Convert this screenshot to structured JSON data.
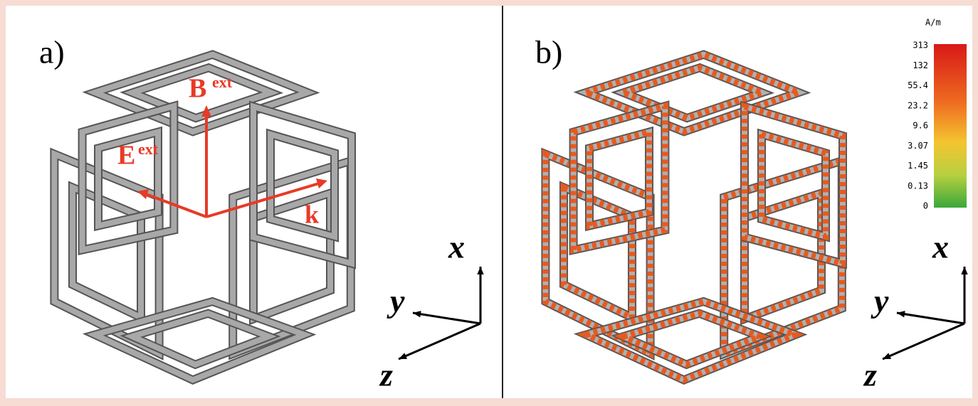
{
  "panel_a": {
    "label": "a)",
    "field_B": "B",
    "field_B_sup": "ext",
    "field_E": "E",
    "field_E_sup": "ext",
    "wave_k": "k",
    "axes": {
      "x": "x",
      "y": "y",
      "z": "z"
    }
  },
  "panel_b": {
    "label": "b)",
    "axes": {
      "x": "x",
      "y": "y",
      "z": "z"
    },
    "colorbar": {
      "unit": "A/m",
      "labels": [
        "313",
        "132",
        "55.4",
        "23.2",
        "9.6",
        "3.07",
        "1.45",
        "0.13",
        "0"
      ]
    }
  }
}
